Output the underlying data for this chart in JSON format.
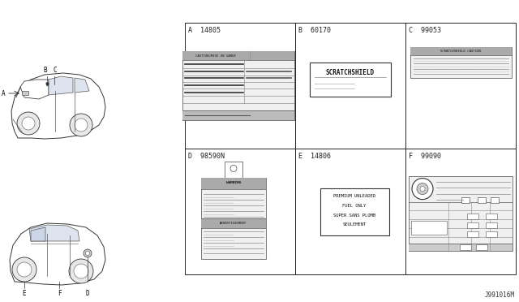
{
  "bg_color": "#ffffff",
  "line_color": "#222222",
  "diagram_code": "J991016M",
  "panels": [
    {
      "id": "A",
      "part": "14805",
      "col": 0,
      "row": 0
    },
    {
      "id": "B",
      "part": "60170",
      "col": 1,
      "row": 0
    },
    {
      "id": "C",
      "part": "99053",
      "col": 2,
      "row": 0
    },
    {
      "id": "D",
      "part": "98590N",
      "col": 0,
      "row": 1
    },
    {
      "id": "E",
      "part": "14806",
      "col": 1,
      "row": 1
    },
    {
      "id": "F",
      "part": "99090",
      "col": 2,
      "row": 1
    }
  ],
  "GX": 228,
  "GY_screen": 28,
  "GW": 408,
  "GH": 310,
  "fig_h": 372,
  "fs_panel_label": 6.0,
  "fs_content": 3.5,
  "fs_code": 5.5
}
